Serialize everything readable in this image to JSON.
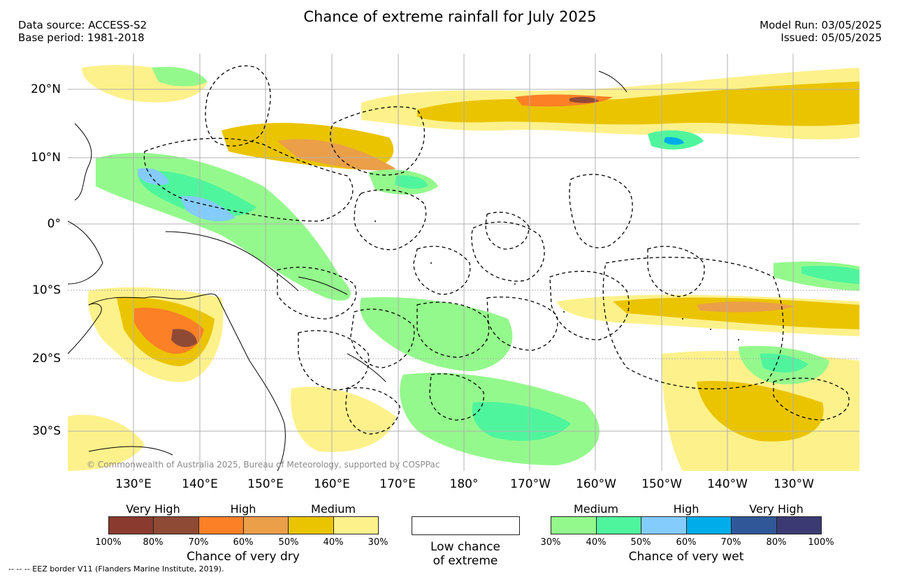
{
  "title": "Chance of extreme rainfall for July 2025",
  "header_left": [
    "Data source: ACCESS-S2",
    "Base period: 1981-2018"
  ],
  "header_right": [
    "Model Run: 03/05/2025",
    "Issued: 05/05/2025"
  ],
  "map": {
    "lat_labels": [
      "20°N",
      "10°N",
      "0°",
      "10°S",
      "20°S",
      "30°S"
    ],
    "lon_labels": [
      "130°E",
      "140°E",
      "150°E",
      "160°E",
      "170°E",
      "180°",
      "170°W",
      "160°W",
      "150°W",
      "140°W",
      "130°W"
    ],
    "copyright": "© Commonwealth of Australia 2025, Bureau of Meteorology, supported by COSPPac",
    "colors": {
      "land_outline": "#000000",
      "eez_border": "#000000",
      "grid": "#b0b0b0"
    }
  },
  "legend": {
    "dry": {
      "categories": [
        "Very High",
        "High",
        "Medium"
      ],
      "colors": [
        "#8b3a2f",
        "#8f4a36",
        "#fb8026",
        "#eb9f49",
        "#ebc400",
        "#fdf18b"
      ],
      "ticks": [
        "100%",
        "80%",
        "70%",
        "60%",
        "50%",
        "40%",
        "30%"
      ],
      "title": "Chance of very dry"
    },
    "low": {
      "line1": "Low chance",
      "line2": "of extreme"
    },
    "wet": {
      "categories": [
        "Medium",
        "High",
        "Very High"
      ],
      "colors": [
        "#94f98c",
        "#4ff59d",
        "#84ccfb",
        "#00adeb",
        "#305899",
        "#3c3a73"
      ],
      "ticks": [
        "30%",
        "40%",
        "50%",
        "60%",
        "70%",
        "80%",
        "100%"
      ],
      "title": "Chance of very wet"
    }
  },
  "footnote": "--  --  -- EEZ border V11 (Flanders Marine Institute, 2019)."
}
